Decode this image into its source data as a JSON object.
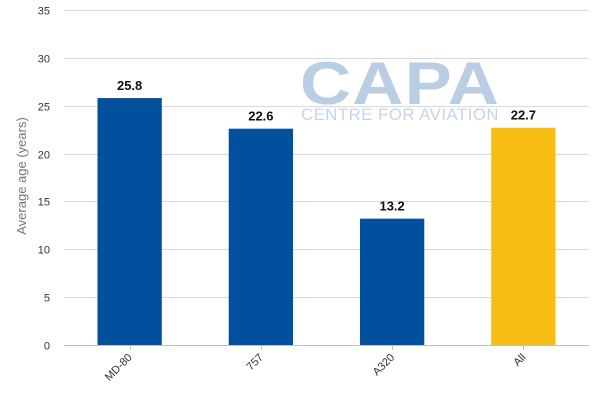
{
  "chart_data": {
    "type": "bar",
    "title": "",
    "xlabel": "",
    "ylabel": "Average age (years)",
    "categories": [
      "MD-80",
      "757",
      "A320",
      "All"
    ],
    "values": [
      25.8,
      22.6,
      13.2,
      22.7
    ],
    "data_labels": [
      "25.8",
      "22.6",
      "13.2",
      "22.7"
    ],
    "bar_colors": [
      "#00509d",
      "#00509d",
      "#00509d",
      "#f7bd12"
    ],
    "ylim": [
      0,
      35
    ],
    "yticks": [
      0,
      5,
      10,
      15,
      20,
      25,
      30,
      35
    ],
    "grid": true,
    "legend": "none"
  },
  "watermark": {
    "main": "CAPA",
    "sub": "CENTRE FOR AVIATION"
  }
}
